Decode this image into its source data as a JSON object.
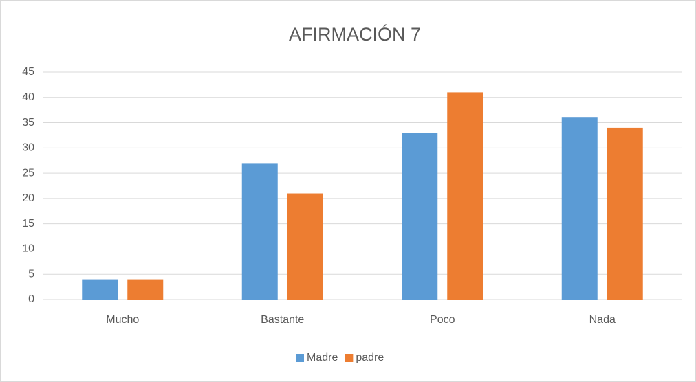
{
  "chart_data": {
    "type": "bar",
    "title": "AFIRMACIÓN 7",
    "categories": [
      "Mucho",
      "Bastante",
      "Poco",
      "Nada"
    ],
    "series": [
      {
        "name": "Madre",
        "color": "#5b9bd5",
        "values": [
          4,
          27,
          33,
          36
        ]
      },
      {
        "name": "padre",
        "color": "#ed7d31",
        "values": [
          4,
          21,
          41,
          34
        ]
      }
    ],
    "ylim": [
      0,
      45
    ],
    "yticks": [
      0,
      5,
      10,
      15,
      20,
      25,
      30,
      35,
      40,
      45
    ],
    "grid": true,
    "legend": "bottom"
  }
}
